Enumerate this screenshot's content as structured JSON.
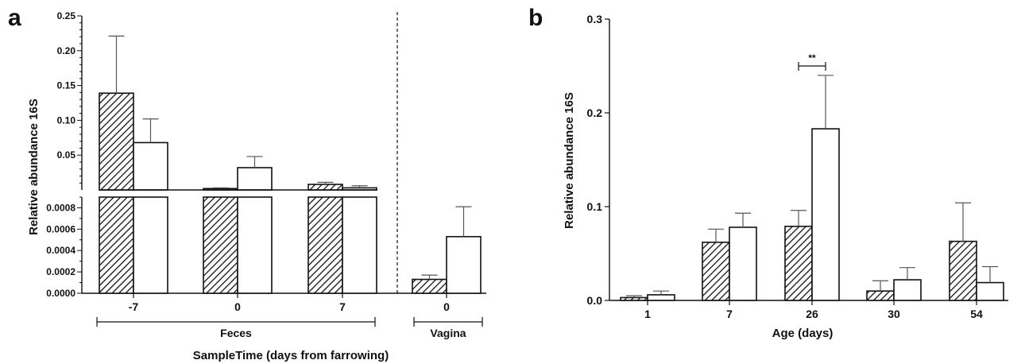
{
  "chart_data": [
    {
      "panel": "a",
      "type": "bar",
      "ylabel": "Relative abundance 16S",
      "xlabel": "SampleTime (days from farrowing)",
      "y_axis_break": true,
      "upper_ticks": [
        "0.05",
        "0.10",
        "0.15",
        "0.20",
        "0.25"
      ],
      "lower_ticks": [
        "0.0000",
        "0.0002",
        "0.0004",
        "0.0006",
        "0.0008"
      ],
      "groups": [
        {
          "label": "Feces",
          "categories": [
            "-7",
            "0",
            "7"
          ]
        },
        {
          "label": "Vagina",
          "categories": [
            "0"
          ]
        }
      ],
      "categories": [
        "-7",
        "0",
        "7",
        "0"
      ],
      "series": [
        {
          "pattern": "hatched",
          "values": [
            0.139,
            0.002,
            0.008,
            0.00013
          ],
          "errors": [
            0.082,
            0.001,
            0.003,
            4e-05
          ]
        },
        {
          "pattern": "open",
          "values": [
            0.068,
            0.032,
            0.003,
            0.00053
          ],
          "errors": [
            0.034,
            0.016,
            0.003,
            0.00028
          ]
        }
      ]
    },
    {
      "panel": "b",
      "type": "bar",
      "ylabel": "Relative abundance 16S",
      "xlabel": "Age (days)",
      "ylim": [
        0,
        0.3
      ],
      "yticks": [
        "0.0",
        "0.1",
        "0.2",
        "0.3"
      ],
      "categories": [
        "1",
        "7",
        "26",
        "30",
        "54"
      ],
      "series": [
        {
          "pattern": "hatched",
          "values": [
            0.003,
            0.062,
            0.079,
            0.01,
            0.063
          ],
          "errors": [
            0.002,
            0.014,
            0.017,
            0.011,
            0.041
          ]
        },
        {
          "pattern": "open",
          "values": [
            0.006,
            0.078,
            0.183,
            0.022,
            0.019
          ],
          "errors": [
            0.004,
            0.015,
            0.057,
            0.013,
            0.017
          ]
        }
      ],
      "annotation": {
        "text": "**",
        "category": "26"
      }
    }
  ]
}
